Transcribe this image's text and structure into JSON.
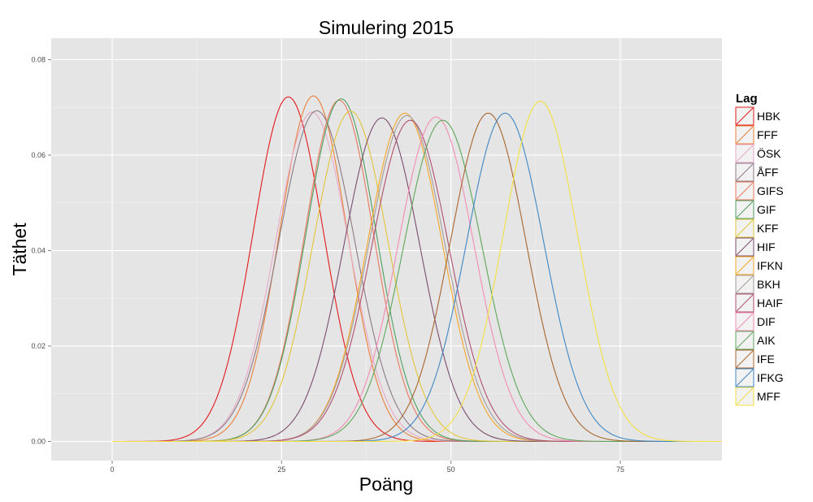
{
  "chart_data": {
    "type": "line",
    "title": "Simulering 2015",
    "xlabel": "Poäng",
    "ylabel": "Täthet",
    "xlim": [
      -9,
      90
    ],
    "ylim": [
      -0.004,
      0.0845
    ],
    "xticks": [
      0,
      25,
      50,
      75
    ],
    "yticks": [
      0.0,
      0.02,
      0.04,
      0.06,
      0.08
    ],
    "ytick_labels": [
      "0.00",
      "0.02",
      "0.04",
      "0.06",
      "0.08"
    ],
    "grid": true,
    "x_range": [
      0,
      90
    ],
    "legend": {
      "title": "Lag",
      "position": "right"
    },
    "series": [
      {
        "name": "HBK",
        "peak_x": 26.0,
        "peak_y": 0.0722,
        "sd": 5.2,
        "color": "#e41a1c"
      },
      {
        "name": "FFF",
        "peak_x": 29.7,
        "peak_y": 0.0724,
        "sd": 5.0,
        "color": "#e8803a"
      },
      {
        "name": "ÖSK",
        "peak_x": 29.5,
        "peak_y": 0.069,
        "sd": 5.4,
        "color": "#e7a9c8"
      },
      {
        "name": "ÅFF",
        "peak_x": 30.2,
        "peak_y": 0.0693,
        "sd": 5.6,
        "color": "#8d7a86"
      },
      {
        "name": "GIFS",
        "peak_x": 33.5,
        "peak_y": 0.0715,
        "sd": 5.1,
        "color": "#e9775e"
      },
      {
        "name": "GIF",
        "peak_x": 33.8,
        "peak_y": 0.0718,
        "sd": 5.2,
        "color": "#4e9f60"
      },
      {
        "name": "KFF",
        "peak_x": 35.2,
        "peak_y": 0.0692,
        "sd": 5.5,
        "color": "#e2c63a"
      },
      {
        "name": "HIF",
        "peak_x": 39.8,
        "peak_y": 0.0678,
        "sd": 5.6,
        "color": "#7a4e6e"
      },
      {
        "name": "IFKN",
        "peak_x": 43.2,
        "peak_y": 0.0688,
        "sd": 5.5,
        "color": "#f5a623"
      },
      {
        "name": "BKH",
        "peak_x": 43.5,
        "peak_y": 0.0683,
        "sd": 5.6,
        "color": "#a59c9c"
      },
      {
        "name": "HAIF",
        "peak_x": 44.0,
        "peak_y": 0.0673,
        "sd": 5.7,
        "color": "#b0506e"
      },
      {
        "name": "DIF",
        "peak_x": 47.8,
        "peak_y": 0.068,
        "sd": 5.6,
        "color": "#f28cb4"
      },
      {
        "name": "AIK",
        "peak_x": 48.8,
        "peak_y": 0.0673,
        "sd": 5.8,
        "color": "#5fa65c"
      },
      {
        "name": "IFE",
        "peak_x": 55.5,
        "peak_y": 0.0688,
        "sd": 5.6,
        "color": "#a8662e"
      },
      {
        "name": "IFKG",
        "peak_x": 58.0,
        "peak_y": 0.0688,
        "sd": 5.7,
        "color": "#3e87c4"
      },
      {
        "name": "MFF",
        "peak_x": 63.2,
        "peak_y": 0.0713,
        "sd": 5.5,
        "color": "#f4e042"
      }
    ]
  }
}
